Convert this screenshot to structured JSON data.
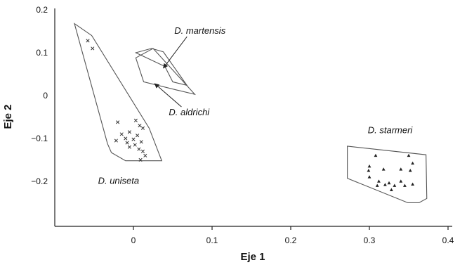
{
  "chart_data": {
    "type": "scatter",
    "xlabel": "Eje 1",
    "ylabel": "Eje 2",
    "xlim": [
      -0.1,
      0.4
    ],
    "ylim": [
      -0.305,
      0.2
    ],
    "xticks": [
      {
        "value": 0,
        "label": "0"
      },
      {
        "value": 0.1,
        "label": "0.1"
      },
      {
        "value": 0.2,
        "label": "0.2"
      },
      {
        "value": 0.3,
        "label": "0.3"
      },
      {
        "value": 0.4,
        "label": "0.4"
      }
    ],
    "yticks": [
      {
        "value": 0.2,
        "label": "0.2"
      },
      {
        "value": 0.1,
        "label": "0.1"
      },
      {
        "value": 0,
        "label": "0"
      },
      {
        "value": -0.1,
        "label": "−0.1"
      },
      {
        "value": -0.2,
        "label": "−0.2"
      }
    ],
    "grid": false,
    "legend": "none",
    "series": [
      {
        "name": "D. uniseta",
        "marker": "x",
        "points": [
          [
            -0.058,
            0.128
          ],
          [
            -0.052,
            0.11
          ],
          [
            -0.02,
            -0.062
          ],
          [
            0.003,
            -0.058
          ],
          [
            0.008,
            -0.07
          ],
          [
            0.012,
            -0.076
          ],
          [
            -0.015,
            -0.09
          ],
          [
            -0.005,
            -0.085
          ],
          [
            -0.01,
            -0.1
          ],
          [
            0.005,
            -0.093
          ],
          [
            -0.022,
            -0.105
          ],
          [
            -0.008,
            -0.11
          ],
          [
            0.0,
            -0.102
          ],
          [
            0.01,
            -0.108
          ],
          [
            -0.005,
            -0.12
          ],
          [
            0.007,
            -0.125
          ],
          [
            0.012,
            -0.13
          ],
          [
            0.015,
            -0.14
          ],
          [
            0.009,
            -0.15
          ],
          [
            0.002,
            -0.115
          ]
        ],
        "hull": [
          [
            -0.075,
            0.168
          ],
          [
            -0.053,
            0.14
          ],
          [
            0.02,
            -0.076
          ],
          [
            0.036,
            -0.152
          ],
          [
            -0.01,
            -0.152
          ],
          [
            -0.028,
            -0.133
          ],
          [
            -0.033,
            -0.112
          ]
        ]
      },
      {
        "name": "D. martensis",
        "hull": [
          [
            0.003,
            0.1
          ],
          [
            0.023,
            0.11
          ],
          [
            0.038,
            0.102
          ],
          [
            0.068,
            0.024
          ],
          [
            0.05,
            0.032
          ],
          [
            0.04,
            0.068
          ]
        ]
      },
      {
        "name": "D. aldrichi",
        "hull": [
          [
            0.003,
            0.088
          ],
          [
            0.025,
            0.11
          ],
          [
            0.078,
            0.003
          ],
          [
            0.055,
            0.013
          ],
          [
            0.013,
            0.032
          ]
        ]
      },
      {
        "name": "D. starmeri",
        "marker": "triangle",
        "points": [
          [
            0.308,
            -0.14
          ],
          [
            0.35,
            -0.14
          ],
          [
            0.355,
            -0.158
          ],
          [
            0.3,
            -0.165
          ],
          [
            0.318,
            -0.172
          ],
          [
            0.34,
            -0.172
          ],
          [
            0.352,
            -0.175
          ],
          [
            0.299,
            -0.175
          ],
          [
            0.3,
            -0.19
          ],
          [
            0.312,
            -0.2
          ],
          [
            0.32,
            -0.208
          ],
          [
            0.34,
            -0.2
          ],
          [
            0.355,
            -0.207
          ],
          [
            0.332,
            -0.21
          ],
          [
            0.31,
            -0.21
          ],
          [
            0.328,
            -0.22
          ],
          [
            0.345,
            -0.21
          ],
          [
            0.325,
            -0.204
          ]
        ],
        "hull": [
          [
            0.272,
            -0.118
          ],
          [
            0.372,
            -0.138
          ],
          [
            0.373,
            -0.24
          ],
          [
            0.363,
            -0.25
          ],
          [
            0.349,
            -0.25
          ],
          [
            0.272,
            -0.193
          ]
        ]
      }
    ],
    "annotations": [
      {
        "text": "D. martensis",
        "x": 0.052,
        "y": 0.144,
        "arrow_to": [
          0.038,
          0.064
        ]
      },
      {
        "text": "D. aldrichi",
        "x": 0.045,
        "y": -0.046,
        "arrow_to": [
          0.027,
          0.028
        ]
      },
      {
        "text": "D. uniseta",
        "x": -0.045,
        "y": -0.206
      },
      {
        "text": "D. starmeri",
        "x": 0.298,
        "y": -0.088
      }
    ]
  }
}
